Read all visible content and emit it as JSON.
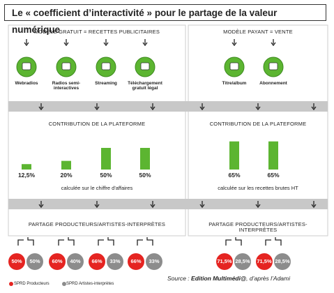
{
  "title": "Le « coefficient d’interactivité » pour le partage de la valeur numérique",
  "left": {
    "model": "MODÈLE GRATUIT = RECETTES PUBLICITAIRES",
    "services": [
      "Webradios",
      "Radios semi-interactives",
      "Streaming",
      "Téléchargement gratuit légal"
    ],
    "contribution_title": "CONTRIBUTION DE LA PLATEFORME",
    "contribution": [
      12.5,
      20,
      50,
      50
    ],
    "contribution_labels": [
      "12,5%",
      "20%",
      "50%",
      "50%"
    ],
    "basis": "calculée sur le chiffre d'affaires",
    "sharing_title": "PARTAGE PRODUCTEURS/ARTISTES-INTERPRÈTES",
    "producers": [
      50,
      60,
      66,
      66
    ],
    "producers_labels": [
      "50%",
      "60%",
      "66%",
      "66%"
    ],
    "artists": [
      50,
      40,
      33,
      33
    ],
    "artists_labels": [
      "50%",
      "40%",
      "33%",
      "33%"
    ]
  },
  "right": {
    "model": "MODÈLE PAYANT = VENTE",
    "services": [
      "Titre/album",
      "Abonnement"
    ],
    "contribution_title": "CONTRIBUTION DE LA PLATEFORME",
    "contribution": [
      65,
      65
    ],
    "contribution_labels": [
      "65%",
      "65%"
    ],
    "basis": "calculée sur les recettes brutes HT",
    "sharing_title": "PARTAGE PRODUCTEURS/ARTISTES-INTERPRÈTES",
    "producers": [
      71.5,
      71.5
    ],
    "producers_labels": [
      "71,5%",
      "71,5%"
    ],
    "artists": [
      28.5,
      28.5
    ],
    "artists_labels": [
      "28,5%",
      "28,5%"
    ]
  },
  "legend": [
    "SPRD Producteurs",
    "SPRD Artistes-interprètes"
  ],
  "source": {
    "prefix": "Source : ",
    "name": "Edition Multimédi@",
    "suffix": ", d’après l’Adami"
  }
}
